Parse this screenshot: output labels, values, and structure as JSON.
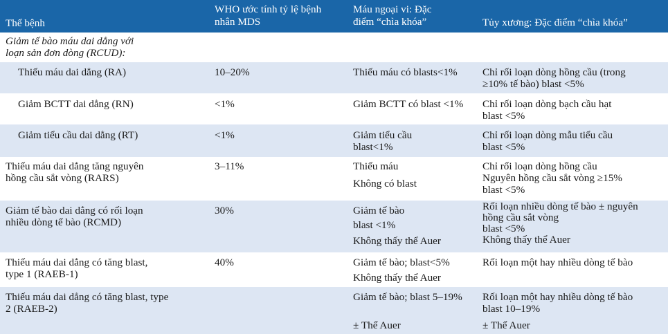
{
  "header": {
    "col1": "Thể bệnh",
    "col2": [
      "WHO ước tính tỷ lệ bệnh",
      "nhân MDS"
    ],
    "col3": [
      "Máu ngoại vi: Đặc",
      "điểm “chìa khóa”"
    ],
    "col4": "Tủy xương: Đặc điểm “chìa khóa”"
  },
  "group_title": [
    "Giảm tế bào máu dai dẳng với",
    "loạn sản đơn dòng (RCUD):"
  ],
  "rows": [
    {
      "name": [
        "Thiếu máu dai dẳng (RA)"
      ],
      "pct": "10–20%",
      "blood": [
        "Thiếu máu có blasts<1%"
      ],
      "marrow": [
        "Chỉ rối loạn dòng hồng cầu (trong",
        "≥10% tế bào) blast <5%"
      ]
    },
    {
      "name": [
        "Giảm BCTT dai dẳng (RN)"
      ],
      "pct": "<1%",
      "blood": [
        "Giảm BCTT có blast <1%"
      ],
      "marrow": [
        "Chỉ rối loạn dòng bạch cầu hạt",
        "blast <5%"
      ]
    },
    {
      "name": [
        "Giảm tiểu cầu dai dẳng (RT)"
      ],
      "pct": "<1%",
      "blood": [
        "Giảm tiểu cầu",
        "blast<1%"
      ],
      "marrow": [
        "Chỉ rối loạn dòng mẫu tiểu cầu",
        "blast <5%"
      ]
    },
    {
      "name": [
        "Thiếu máu dai dẳng tăng nguyên",
        "hồng cầu sắt vòng (RARS)"
      ],
      "pct": "3–11%",
      "blood": [
        "Thiếu máu",
        "Không có blast"
      ],
      "marrow": [
        "Chỉ rối loạn dòng hồng cầu",
        "Nguyên hồng cầu sắt vòng ≥15%",
        "blast <5%"
      ]
    },
    {
      "name": [
        "Giảm tế bào dai dẳng có rối loạn",
        "nhiều dòng tế bào (RCMD)"
      ],
      "pct": "30%",
      "blood": [
        "Giảm tế bào",
        "blast <1%",
        "Không thấy thể Auer"
      ],
      "marrow": [
        "Rối loạn nhiều dòng tế bào ± nguyên",
        "hồng cầu sắt vòng",
        "blast <5%",
        "Không thấy thể Auer"
      ]
    },
    {
      "name": [
        "Thiếu máu dai dẳng có tăng blast,",
        "type 1 (RAEB-1)"
      ],
      "pct": "40%",
      "blood": [
        "Giảm tế bào; blast<5%",
        "Không thấy thể Auer"
      ],
      "marrow": [
        "Rối loạn một hay nhiều dòng tế bào"
      ]
    },
    {
      "name": [
        "Thiếu máu dai dẳng có tăng blast, type",
        "2 (RAEB-2)"
      ],
      "pct": "",
      "blood": [
        "Giảm tế bào; blast 5–19%",
        "± Thể Auer"
      ],
      "marrow": [
        "Rối loạn một hay nhiều dòng tế bào",
        "blast 10–19%",
        "± Thể Auer"
      ]
    }
  ],
  "colors": {
    "header_bg": "#1a66a8",
    "shade_bg": "#dde6f3"
  }
}
